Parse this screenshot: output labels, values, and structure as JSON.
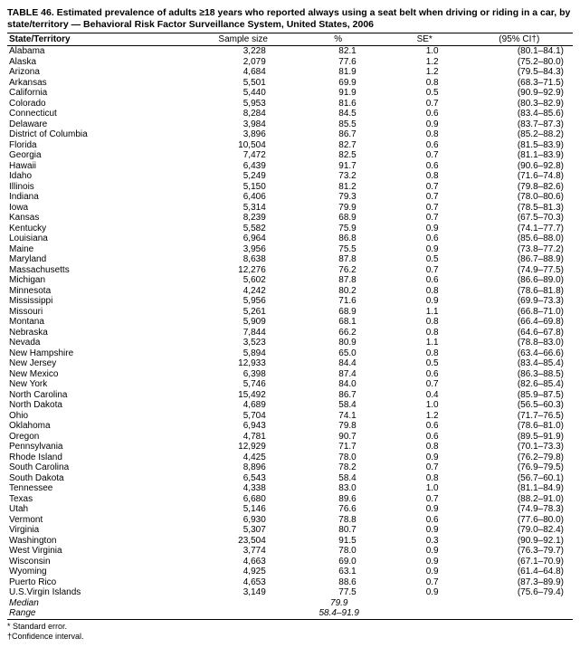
{
  "title": "TABLE 46. Estimated prevalence of adults ≥18 years who reported always using a seat belt when driving or riding in a car, by state/territory — Behavioral Risk Factor Surveillance System, United States, 2006",
  "headers": {
    "state": "State/Territory",
    "sample_size": "Sample size",
    "pct": "%",
    "se": "SE*",
    "ci": "(95% CI†)"
  },
  "rows": [
    {
      "state": "Alabama",
      "ss": "3,228",
      "pct": "82.1",
      "se": "1.0",
      "ci": "(80.1–84.1)"
    },
    {
      "state": "Alaska",
      "ss": "2,079",
      "pct": "77.6",
      "se": "1.2",
      "ci": "(75.2–80.0)"
    },
    {
      "state": "Arizona",
      "ss": "4,684",
      "pct": "81.9",
      "se": "1.2",
      "ci": "(79.5–84.3)"
    },
    {
      "state": "Arkansas",
      "ss": "5,501",
      "pct": "69.9",
      "se": "0.8",
      "ci": "(68.3–71.5)"
    },
    {
      "state": "California",
      "ss": "5,440",
      "pct": "91.9",
      "se": "0.5",
      "ci": "(90.9–92.9)"
    },
    {
      "state": "Colorado",
      "ss": "5,953",
      "pct": "81.6",
      "se": "0.7",
      "ci": "(80.3–82.9)"
    },
    {
      "state": "Connecticut",
      "ss": "8,284",
      "pct": "84.5",
      "se": "0.6",
      "ci": "(83.4–85.6)"
    },
    {
      "state": "Delaware",
      "ss": "3,984",
      "pct": "85.5",
      "se": "0.9",
      "ci": "(83.7–87.3)"
    },
    {
      "state": "District of Columbia",
      "ss": "3,896",
      "pct": "86.7",
      "se": "0.8",
      "ci": "(85.2–88.2)"
    },
    {
      "state": "Florida",
      "ss": "10,504",
      "pct": "82.7",
      "se": "0.6",
      "ci": "(81.5–83.9)"
    },
    {
      "state": "Georgia",
      "ss": "7,472",
      "pct": "82.5",
      "se": "0.7",
      "ci": "(81.1–83.9)"
    },
    {
      "state": "Hawaii",
      "ss": "6,439",
      "pct": "91.7",
      "se": "0.6",
      "ci": "(90.6–92.8)"
    },
    {
      "state": "Idaho",
      "ss": "5,249",
      "pct": "73.2",
      "se": "0.8",
      "ci": "(71.6–74.8)"
    },
    {
      "state": "Illinois",
      "ss": "5,150",
      "pct": "81.2",
      "se": "0.7",
      "ci": "(79.8–82.6)"
    },
    {
      "state": "Indiana",
      "ss": "6,406",
      "pct": "79.3",
      "se": "0.7",
      "ci": "(78.0–80.6)"
    },
    {
      "state": "Iowa",
      "ss": "5,314",
      "pct": "79.9",
      "se": "0.7",
      "ci": "(78.5–81.3)"
    },
    {
      "state": "Kansas",
      "ss": "8,239",
      "pct": "68.9",
      "se": "0.7",
      "ci": "(67.5–70.3)"
    },
    {
      "state": "Kentucky",
      "ss": "5,582",
      "pct": "75.9",
      "se": "0.9",
      "ci": "(74.1–77.7)"
    },
    {
      "state": "Louisiana",
      "ss": "6,964",
      "pct": "86.8",
      "se": "0.6",
      "ci": "(85.6–88.0)"
    },
    {
      "state": "Maine",
      "ss": "3,956",
      "pct": "75.5",
      "se": "0.9",
      "ci": "(73.8–77.2)"
    },
    {
      "state": "Maryland",
      "ss": "8,638",
      "pct": "87.8",
      "se": "0.5",
      "ci": "(86.7–88.9)"
    },
    {
      "state": "Massachusetts",
      "ss": "12,276",
      "pct": "76.2",
      "se": "0.7",
      "ci": "(74.9–77.5)"
    },
    {
      "state": "Michigan",
      "ss": "5,602",
      "pct": "87.8",
      "se": "0.6",
      "ci": "(86.6–89.0)"
    },
    {
      "state": "Minnesota",
      "ss": "4,242",
      "pct": "80.2",
      "se": "0.8",
      "ci": "(78.6–81.8)"
    },
    {
      "state": "Mississippi",
      "ss": "5,956",
      "pct": "71.6",
      "se": "0.9",
      "ci": "(69.9–73.3)"
    },
    {
      "state": "Missouri",
      "ss": "5,261",
      "pct": "68.9",
      "se": "1.1",
      "ci": "(66.8–71.0)"
    },
    {
      "state": "Montana",
      "ss": "5,909",
      "pct": "68.1",
      "se": "0.8",
      "ci": "(66.4–69.8)"
    },
    {
      "state": "Nebraska",
      "ss": "7,844",
      "pct": "66.2",
      "se": "0.8",
      "ci": "(64.6–67.8)"
    },
    {
      "state": "Nevada",
      "ss": "3,523",
      "pct": "80.9",
      "se": "1.1",
      "ci": "(78.8–83.0)"
    },
    {
      "state": "New Hampshire",
      "ss": "5,894",
      "pct": "65.0",
      "se": "0.8",
      "ci": "(63.4–66.6)"
    },
    {
      "state": "New Jersey",
      "ss": "12,933",
      "pct": "84.4",
      "se": "0.5",
      "ci": "(83.4–85.4)"
    },
    {
      "state": "New Mexico",
      "ss": "6,398",
      "pct": "87.4",
      "se": "0.6",
      "ci": "(86.3–88.5)"
    },
    {
      "state": "New York",
      "ss": "5,746",
      "pct": "84.0",
      "se": "0.7",
      "ci": "(82.6–85.4)"
    },
    {
      "state": "North Carolina",
      "ss": "15,492",
      "pct": "86.7",
      "se": "0.4",
      "ci": "(85.9–87.5)"
    },
    {
      "state": "North Dakota",
      "ss": "4,689",
      "pct": "58.4",
      "se": "1.0",
      "ci": "(56.5–60.3)"
    },
    {
      "state": "Ohio",
      "ss": "5,704",
      "pct": "74.1",
      "se": "1.2",
      "ci": "(71.7–76.5)"
    },
    {
      "state": "Oklahoma",
      "ss": "6,943",
      "pct": "79.8",
      "se": "0.6",
      "ci": "(78.6–81.0)"
    },
    {
      "state": "Oregon",
      "ss": "4,781",
      "pct": "90.7",
      "se": "0.6",
      "ci": "(89.5–91.9)"
    },
    {
      "state": "Pennsylvania",
      "ss": "12,929",
      "pct": "71.7",
      "se": "0.8",
      "ci": "(70.1–73.3)"
    },
    {
      "state": "Rhode Island",
      "ss": "4,425",
      "pct": "78.0",
      "se": "0.9",
      "ci": "(76.2–79.8)"
    },
    {
      "state": "South Carolina",
      "ss": "8,896",
      "pct": "78.2",
      "se": "0.7",
      "ci": "(76.9–79.5)"
    },
    {
      "state": "South Dakota",
      "ss": "6,543",
      "pct": "58.4",
      "se": "0.8",
      "ci": "(56.7–60.1)"
    },
    {
      "state": "Tennessee",
      "ss": "4,338",
      "pct": "83.0",
      "se": "1.0",
      "ci": "(81.1–84.9)"
    },
    {
      "state": "Texas",
      "ss": "6,680",
      "pct": "89.6",
      "se": "0.7",
      "ci": "(88.2–91.0)"
    },
    {
      "state": "Utah",
      "ss": "5,146",
      "pct": "76.6",
      "se": "0.9",
      "ci": "(74.9–78.3)"
    },
    {
      "state": "Vermont",
      "ss": "6,930",
      "pct": "78.8",
      "se": "0.6",
      "ci": "(77.6–80.0)"
    },
    {
      "state": "Virginia",
      "ss": "5,307",
      "pct": "80.7",
      "se": "0.9",
      "ci": "(79.0–82.4)"
    },
    {
      "state": "Washington",
      "ss": "23,504",
      "pct": "91.5",
      "se": "0.3",
      "ci": "(90.9–92.1)"
    },
    {
      "state": "West Virginia",
      "ss": "3,774",
      "pct": "78.0",
      "se": "0.9",
      "ci": "(76.3–79.7)"
    },
    {
      "state": "Wisconsin",
      "ss": "4,663",
      "pct": "69.0",
      "se": "0.9",
      "ci": "(67.1–70.9)"
    },
    {
      "state": "Wyoming",
      "ss": "4,925",
      "pct": "63.1",
      "se": "0.9",
      "ci": "(61.4–64.8)"
    },
    {
      "state": "Puerto Rico",
      "ss": "4,653",
      "pct": "88.6",
      "se": "0.7",
      "ci": "(87.3–89.9)"
    },
    {
      "state": "U.S.Virgin Islands",
      "ss": "3,149",
      "pct": "77.5",
      "se": "0.9",
      "ci": "(75.6–79.4)"
    }
  ],
  "median": {
    "label": "Median",
    "pct": "79.9"
  },
  "range": {
    "label": "Range",
    "pct": "58.4–91.9"
  },
  "footnotes": [
    "* Standard error.",
    "†Confidence interval."
  ]
}
